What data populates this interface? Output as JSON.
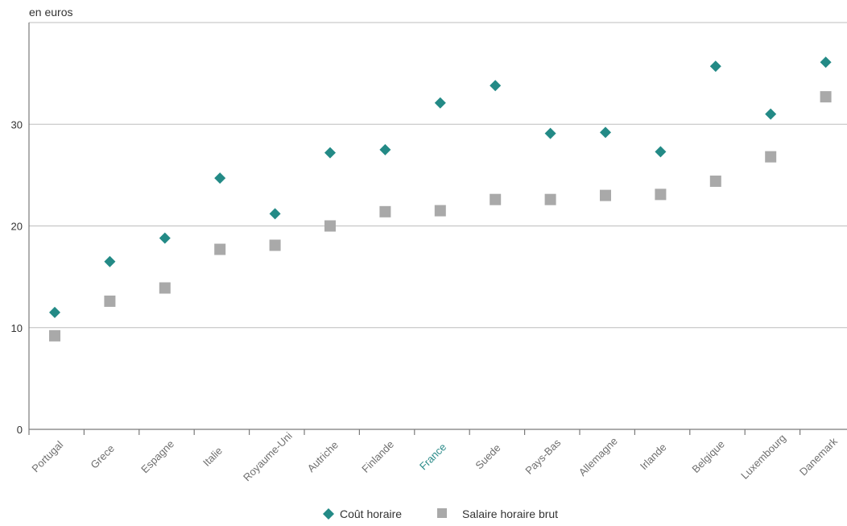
{
  "chart_data": {
    "type": "scatter",
    "unit_label": "en euros",
    "categories": [
      "Portugal",
      "Grece",
      "Espagne",
      "Italie",
      "Royaume-Uni",
      "Autriche",
      "Finlande",
      "France",
      "Suede",
      "Pays-Bas",
      "Allemagne",
      "Irlande",
      "Belgique",
      "Luxembourg",
      "Danemark"
    ],
    "highlight_category": "France",
    "series": [
      {
        "name": "Coût horaire",
        "marker": "diamond",
        "color": "#238a86",
        "values": [
          11.5,
          16.5,
          18.8,
          24.7,
          21.2,
          27.2,
          27.5,
          32.1,
          33.8,
          29.1,
          29.2,
          27.3,
          35.7,
          31.0,
          36.1
        ]
      },
      {
        "name": "Salaire horaire brut",
        "marker": "square",
        "color": "#a9a9a9",
        "values": [
          9.2,
          12.6,
          13.9,
          17.7,
          18.1,
          20.0,
          21.4,
          21.5,
          22.6,
          22.6,
          23.0,
          23.1,
          24.4,
          26.8,
          32.7
        ]
      }
    ],
    "y_ticks": [
      "0",
      "10",
      "20",
      "30"
    ],
    "ylim": [
      0,
      40
    ],
    "grid": true,
    "legend_position": "bottom-center"
  }
}
